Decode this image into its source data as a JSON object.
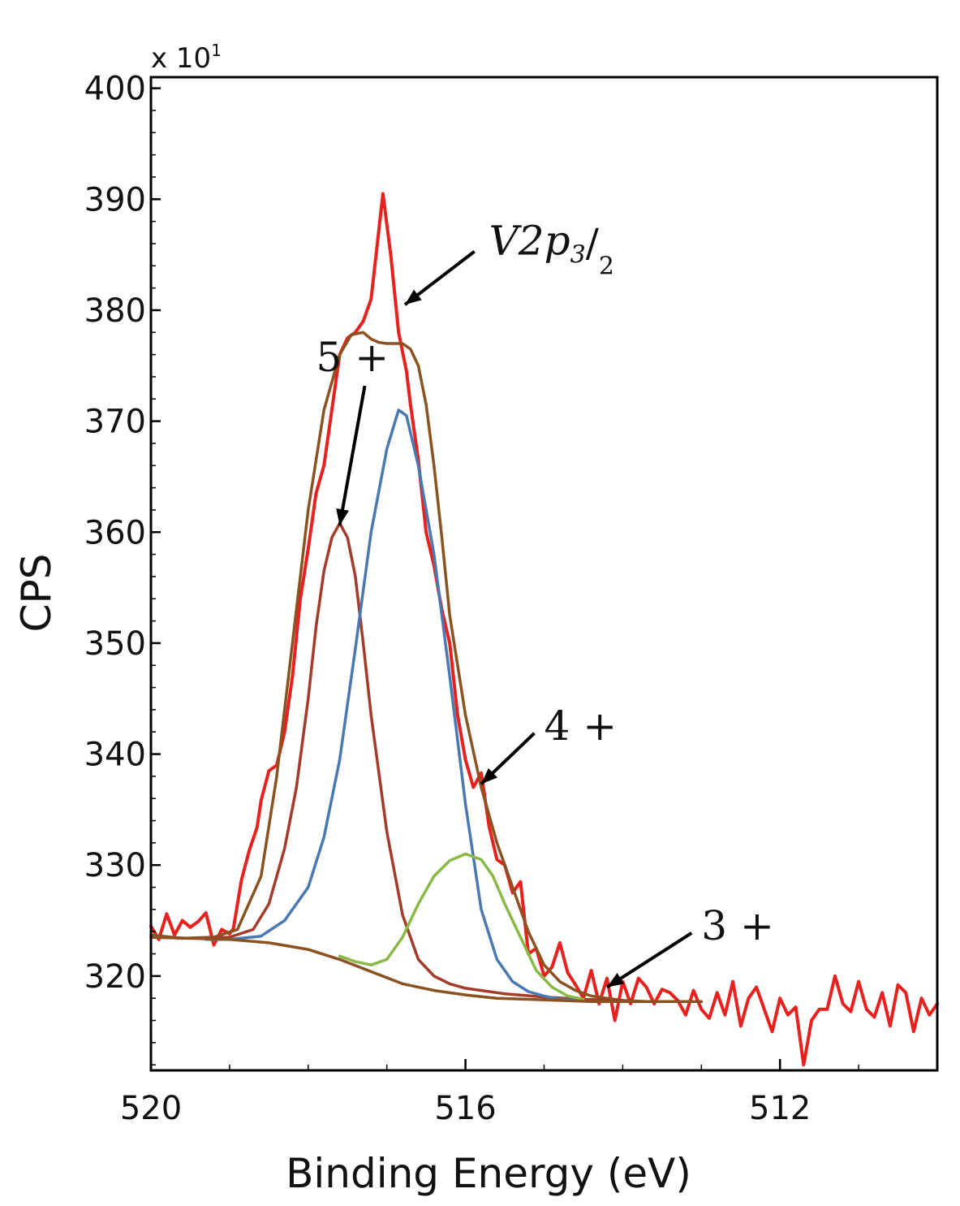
{
  "chart_data": {
    "type": "line",
    "title": "",
    "xlabel": "Binding Energy (eV)",
    "ylabel": "CPS",
    "y_multiplier_label": "x 10",
    "y_multiplier_exponent": "1",
    "xlim": [
      520,
      510
    ],
    "ylim": [
      311.5,
      401
    ],
    "x_reversed": true,
    "x_ticks": [
      520,
      516,
      512
    ],
    "y_ticks": [
      320,
      330,
      340,
      350,
      360,
      370,
      380,
      390,
      400
    ],
    "grid": false,
    "legend": "none",
    "series": [
      {
        "color": "#e8201e",
        "x": [
          520.0,
          519.9,
          519.8,
          519.7,
          519.6,
          519.5,
          519.4,
          519.3,
          519.2,
          519.1,
          519.0,
          518.95,
          518.85,
          518.75,
          518.65,
          518.6,
          518.5,
          518.4,
          518.3,
          518.2,
          518.1,
          518.0,
          517.9,
          517.8,
          517.7,
          517.6,
          517.5,
          517.4,
          517.3,
          517.2,
          517.05,
          516.95,
          516.85,
          516.75,
          516.7,
          516.6,
          516.5,
          516.4,
          516.3,
          516.2,
          516.1,
          516.0,
          515.9,
          515.8,
          515.7,
          515.6,
          515.5,
          515.4,
          515.3,
          515.2,
          515.1,
          515.0,
          514.9,
          514.8,
          514.7,
          514.6,
          514.5,
          514.4,
          514.3,
          514.2,
          514.1,
          514.0,
          513.9,
          513.8,
          513.7,
          513.6,
          513.5,
          513.4,
          513.3,
          513.2,
          513.1,
          513.0,
          512.9,
          512.8,
          512.7,
          512.6,
          512.5,
          512.4,
          512.3,
          512.2,
          512.1,
          512.0,
          511.9,
          511.8,
          511.7,
          511.6,
          511.5,
          511.4,
          511.3,
          511.2,
          511.1,
          511.0,
          510.9,
          510.8,
          510.7,
          510.6,
          510.5,
          510.4,
          510.3,
          510.2,
          510.1,
          510.0
        ],
        "values": [
          324.5,
          323.3,
          325.6,
          323.7,
          325.0,
          324.4,
          324.9,
          325.7,
          322.8,
          324.2,
          323.8,
          324.3,
          328.6,
          331.3,
          333.4,
          335.8,
          338.5,
          339.0,
          342.0,
          347.0,
          354.0,
          358.5,
          363.5,
          366.0,
          371.0,
          376.0,
          377.5,
          378.0,
          379.0,
          381.0,
          390.5,
          385.0,
          378.0,
          374.5,
          371.5,
          366.5,
          360.0,
          357.0,
          353.0,
          350.0,
          343.5,
          339.5,
          337.0,
          338.3,
          333.5,
          330.5,
          330.0,
          327.5,
          328.5,
          322.0,
          322.5,
          320.0,
          320.8,
          323.0,
          320.3,
          319.2,
          318.0,
          320.5,
          317.5,
          319.8,
          316.0,
          319.5,
          317.5,
          319.8,
          319.0,
          317.5,
          318.8,
          318.5,
          317.8,
          316.5,
          318.7,
          317.0,
          316.2,
          318.5,
          316.5,
          319.5,
          315.5,
          318.0,
          319.0,
          317.0,
          315.0,
          318.0,
          316.5,
          317.2,
          312.0,
          316.0,
          317.0,
          317.0,
          320.0,
          317.5,
          316.8,
          319.5,
          317.0,
          316.3,
          318.5,
          315.5,
          319.2,
          318.5,
          315.0,
          318.0,
          316.5,
          317.5
        ]
      },
      {
        "color": "#8a5220",
        "x": [
          520.0,
          519.6,
          519.2,
          518.9,
          518.6,
          518.4,
          518.2,
          518.0,
          517.8,
          517.6,
          517.45,
          517.3,
          517.2,
          517.1,
          517.0,
          516.9,
          516.8,
          516.7,
          516.6,
          516.5,
          516.4,
          516.3,
          516.2,
          516.0,
          515.8,
          515.6,
          515.4,
          515.2,
          515.0,
          514.8,
          514.6,
          514.4,
          514.2,
          514.0,
          513.7,
          513.5,
          513.0
        ],
        "values": [
          323.7,
          323.4,
          323.5,
          324.2,
          329.0,
          338.0,
          350.0,
          362.0,
          371.0,
          376.0,
          377.8,
          378.0,
          377.4,
          377.1,
          377.0,
          377.0,
          377.0,
          376.5,
          375.0,
          371.5,
          366.0,
          359.5,
          352.5,
          343.5,
          337.0,
          332.0,
          328.0,
          324.0,
          321.0,
          319.5,
          318.7,
          318.2,
          318.0,
          317.8,
          317.7,
          317.7,
          317.7
        ]
      },
      {
        "color": "#a43a2a",
        "x": [
          520.0,
          519.5,
          519.0,
          518.7,
          518.5,
          518.3,
          518.15,
          518.0,
          517.9,
          517.8,
          517.7,
          517.6,
          517.5,
          517.4,
          517.3,
          517.2,
          517.0,
          516.8,
          516.6,
          516.4,
          516.2,
          516.0,
          515.5,
          515.0,
          514.5,
          514.0
        ],
        "values": [
          323.5,
          323.4,
          323.5,
          324.2,
          326.5,
          331.5,
          337.0,
          345.0,
          351.5,
          356.5,
          359.5,
          360.8,
          359.5,
          356.0,
          350.0,
          343.5,
          333.0,
          325.5,
          321.5,
          320.0,
          319.3,
          318.9,
          318.4,
          318.1,
          317.9,
          317.8
        ]
      },
      {
        "color": "#4a78b0",
        "x": [
          519.3,
          519.0,
          518.6,
          518.3,
          518.0,
          517.8,
          517.6,
          517.4,
          517.2,
          517.0,
          516.85,
          516.75,
          516.6,
          516.4,
          516.2,
          516.0,
          515.8,
          515.6,
          515.4,
          515.2,
          515.0,
          514.8,
          514.5
        ],
        "values": [
          323.3,
          323.3,
          323.6,
          325.0,
          328.0,
          332.5,
          339.5,
          349.5,
          360.0,
          367.5,
          371.0,
          370.5,
          366.0,
          358.0,
          347.0,
          335.5,
          326.0,
          321.5,
          319.5,
          318.6,
          318.2,
          317.9,
          317.8
        ]
      },
      {
        "color": "#8ab846",
        "x": [
          517.6,
          517.4,
          517.2,
          517.0,
          516.8,
          516.6,
          516.4,
          516.2,
          516.0,
          515.8,
          515.65,
          515.5,
          515.3,
          515.1,
          514.9,
          514.7,
          514.5
        ],
        "values": [
          321.8,
          321.3,
          321.0,
          321.5,
          323.5,
          326.5,
          329.0,
          330.4,
          331.0,
          330.5,
          329.0,
          326.5,
          323.5,
          320.5,
          319.0,
          318.2,
          317.9
        ]
      },
      {
        "color": "#8a5220",
        "x": [
          520.0,
          519.5,
          519.0,
          518.5,
          518.0,
          517.6,
          517.2,
          516.8,
          516.4,
          516.0,
          515.6,
          515.2,
          514.8,
          514.4,
          514.0,
          513.5,
          513.0
        ],
        "values": [
          323.5,
          323.4,
          323.3,
          323.0,
          322.4,
          321.5,
          320.4,
          319.3,
          318.7,
          318.3,
          318.0,
          317.9,
          317.8,
          317.7,
          317.7,
          317.7,
          317.7
        ]
      }
    ],
    "annotations": [
      {
        "base": "V2p",
        "subscript": "3",
        "slash": "/",
        "denominator": "2",
        "target_x": 516.77,
        "target_y": 380.5,
        "text_x": 515.7,
        "text_y": 385.0
      },
      {
        "label": "5 +",
        "target_x": 517.6,
        "target_y": 360.6,
        "text_x": 517.9,
        "text_y": 374.5
      },
      {
        "label": "4 +",
        "target_x": 515.8,
        "target_y": 337.3,
        "text_x": 515.0,
        "text_y": 341.3
      },
      {
        "label": "3 +",
        "target_x": 514.2,
        "target_y": 319.0,
        "text_x": 513.0,
        "text_y": 323.3
      }
    ]
  }
}
